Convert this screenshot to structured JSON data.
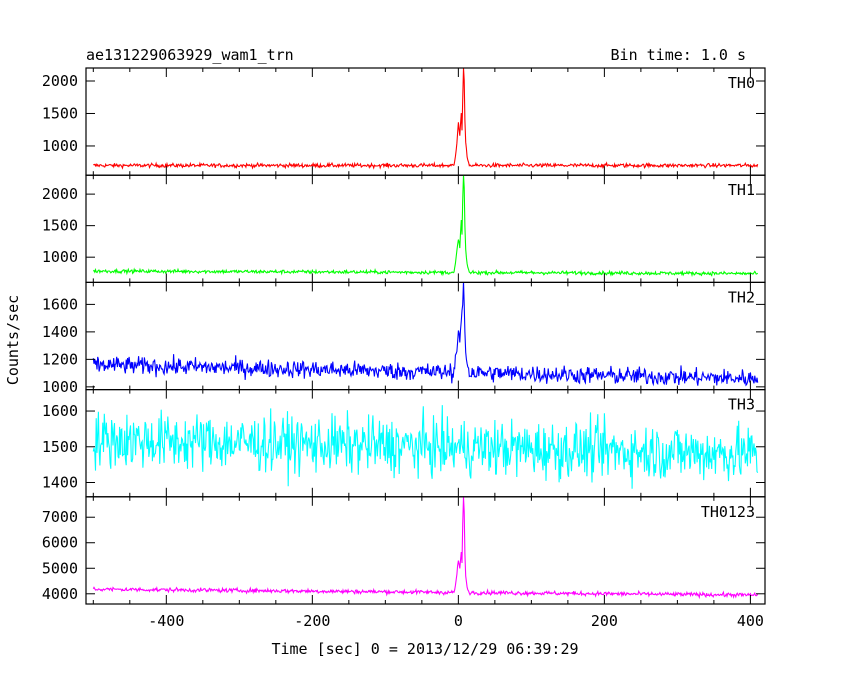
{
  "header": {
    "title": "ae131229063929_wam1_trn",
    "bin_time": "Bin time: 1.0 s"
  },
  "axes": {
    "ylabel": "Counts/sec",
    "xlabel": "Time [sec] 0 = 2013/12/29 06:39:29"
  },
  "chart_data": [
    {
      "type": "line",
      "series_name": "TH0",
      "color": "#ff0000",
      "xlim": [
        -510,
        420
      ],
      "ylim": [
        550,
        2200
      ],
      "yticks": [
        1000,
        1500,
        2000
      ],
      "xticks": [
        -400,
        -200,
        0,
        200,
        400
      ],
      "baseline": 700,
      "noise": 30,
      "start": 700,
      "end": 700,
      "spike": [
        [
          -6,
          700
        ],
        [
          -4,
          850
        ],
        [
          -2,
          1050
        ],
        [
          0,
          1350
        ],
        [
          2,
          1150
        ],
        [
          4,
          1500
        ],
        [
          5,
          1250
        ],
        [
          6,
          1700
        ],
        [
          7,
          2200
        ],
        [
          8,
          2000
        ],
        [
          9,
          1400
        ],
        [
          10,
          1050
        ],
        [
          12,
          850
        ],
        [
          14,
          750
        ]
      ]
    },
    {
      "type": "line",
      "series_name": "TH1",
      "color": "#00ff00",
      "xlim": [
        -510,
        420
      ],
      "ylim": [
        600,
        2300
      ],
      "yticks": [
        1000,
        1500,
        2000
      ],
      "xticks": [
        -400,
        -200,
        0,
        200,
        400
      ],
      "baseline": 760,
      "noise": 28,
      "start": 780,
      "end": 740,
      "spike": [
        [
          -6,
          760
        ],
        [
          -4,
          900
        ],
        [
          -2,
          1100
        ],
        [
          0,
          1300
        ],
        [
          2,
          1150
        ],
        [
          4,
          1600
        ],
        [
          5,
          1350
        ],
        [
          6,
          1900
        ],
        [
          7,
          2300
        ],
        [
          8,
          2100
        ],
        [
          9,
          1500
        ],
        [
          10,
          1100
        ],
        [
          12,
          900
        ],
        [
          14,
          800
        ]
      ]
    },
    {
      "type": "line",
      "series_name": "TH2",
      "color": "#0000ff",
      "xlim": [
        -510,
        420
      ],
      "ylim": [
        980,
        1760
      ],
      "yticks": [
        1000,
        1200,
        1400,
        1600
      ],
      "xticks": [
        -400,
        -200,
        0,
        200,
        400
      ],
      "baseline": 1100,
      "noise": 65,
      "start": 1160,
      "end": 1060,
      "spike": [
        [
          -6,
          1130
        ],
        [
          -4,
          1200
        ],
        [
          -2,
          1280
        ],
        [
          0,
          1400
        ],
        [
          2,
          1320
        ],
        [
          4,
          1480
        ],
        [
          6,
          1600
        ],
        [
          7,
          1740
        ],
        [
          8,
          1620
        ],
        [
          9,
          1400
        ],
        [
          10,
          1250
        ],
        [
          12,
          1180
        ],
        [
          14,
          1130
        ]
      ]
    },
    {
      "type": "line",
      "series_name": "TH3",
      "color": "#00ffff",
      "xlim": [
        -510,
        420
      ],
      "ylim": [
        1360,
        1660
      ],
      "yticks": [
        1400,
        1500,
        1600
      ],
      "xticks": [
        -400,
        -200,
        0,
        200,
        400
      ],
      "baseline": 1500,
      "noise": 80,
      "start": 1520,
      "end": 1480,
      "spike": []
    },
    {
      "type": "line",
      "series_name": "TH0123",
      "color": "#ff00ff",
      "xlim": [
        -510,
        420
      ],
      "ylim": [
        3600,
        7800
      ],
      "yticks": [
        4000,
        5000,
        6000,
        7000
      ],
      "xticks": [
        -400,
        -200,
        0,
        200,
        400
      ],
      "baseline": 4000,
      "noise": 80,
      "start": 4180,
      "end": 3950,
      "spike": [
        [
          -6,
          4050
        ],
        [
          -4,
          4300
        ],
        [
          -2,
          4800
        ],
        [
          0,
          5300
        ],
        [
          2,
          5000
        ],
        [
          4,
          5600
        ],
        [
          5,
          5200
        ],
        [
          6,
          6700
        ],
        [
          7,
          7800
        ],
        [
          8,
          7200
        ],
        [
          9,
          5600
        ],
        [
          10,
          4700
        ],
        [
          12,
          4250
        ],
        [
          14,
          4100
        ]
      ]
    }
  ]
}
